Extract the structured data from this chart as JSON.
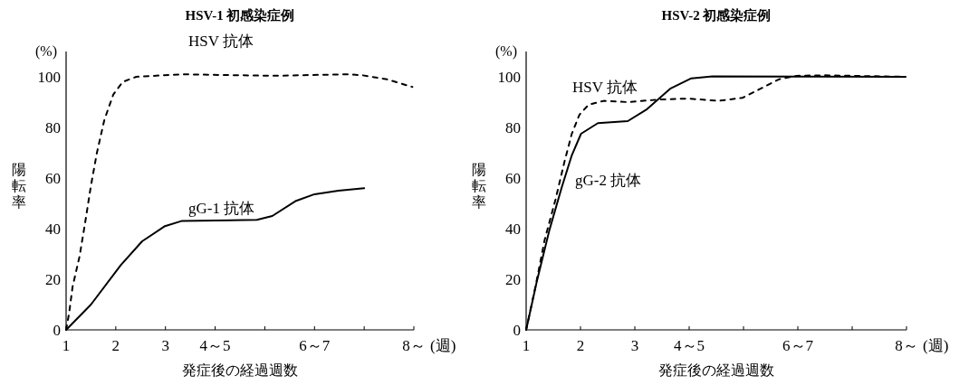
{
  "chart_data": [
    {
      "type": "line",
      "title": "HSV-1 初感染症例",
      "xlabel": "発症後の経過週数",
      "ylabel": "陽転率",
      "annotations": [
        "(%)",
        "(週)"
      ],
      "xlim": [
        1,
        8
      ],
      "xticks": [
        1,
        2,
        3,
        {
          "value": 4,
          "label": "4～5"
        },
        {
          "value": 5,
          "label": null
        },
        {
          "value": 6,
          "label": "6～7"
        },
        {
          "value": 7,
          "label": null
        },
        {
          "value": 8,
          "label": "8～"
        }
      ],
      "ylim": [
        0,
        110
      ],
      "yticks": [
        0,
        20,
        40,
        60,
        80,
        100
      ],
      "grid": false,
      "marker": "none",
      "series": [
        {
          "name": "HSV 抗体",
          "color": "#000000",
          "line_style": "dashed",
          "x": [
            1,
            1.06,
            1.13,
            1.27,
            1.38,
            1.5,
            1.62,
            1.77,
            1.95,
            2.14,
            2.41,
            3.32,
            5.15,
            6.67,
            6.97,
            7.46,
            7.97
          ],
          "values": [
            0,
            6.5,
            17,
            29,
            42,
            57,
            70,
            83,
            93,
            98,
            100,
            101,
            100.4,
            101,
            100.6,
            99,
            96
          ]
        },
        {
          "name": "gG-1 抗体",
          "color": "#000000",
          "line_style": "solid",
          "x": [
            1,
            1.5,
            2.1,
            2.53,
            2.99,
            3.32,
            4.84,
            5.15,
            5.63,
            6,
            6.48,
            7
          ],
          "values": [
            0,
            10,
            25.6,
            35,
            41,
            43,
            43.5,
            45,
            51,
            53.6,
            55,
            56
          ]
        }
      ]
    },
    {
      "type": "line",
      "title": "HSV-2 初感染症例",
      "xlabel": "発症後の経過週数",
      "ylabel": "陽転率",
      "annotations": [
        "(%)",
        "(週)"
      ],
      "xlim": [
        1,
        8
      ],
      "xticks": [
        1,
        2,
        3,
        {
          "value": 4,
          "label": "4～5"
        },
        {
          "value": 5,
          "label": null
        },
        {
          "value": 6,
          "label": "6～7"
        },
        {
          "value": 7,
          "label": null
        },
        {
          "value": 8,
          "label": "8～"
        }
      ],
      "ylim": [
        0,
        110
      ],
      "yticks": [
        0,
        20,
        40,
        60,
        80,
        100
      ],
      "grid": false,
      "marker": "none",
      "series": [
        {
          "name": "HSV 抗体",
          "color": "#000000",
          "line_style": "dashed",
          "x": [
            1,
            1.18,
            1.34,
            1.54,
            1.7,
            1.84,
            1.98,
            2.15,
            2.43,
            2.87,
            3.43,
            3.98,
            4.54,
            4.98,
            5.26,
            5.65,
            5.98,
            6.48,
            7.98
          ],
          "values": [
            0,
            18,
            35.5,
            51.5,
            66,
            77.5,
            85,
            89,
            90.5,
            90,
            91,
            91.4,
            90.5,
            91.7,
            94.7,
            99,
            100.4,
            100.6,
            100
          ]
        },
        {
          "name": "gG-2 抗体",
          "color": "#000000",
          "line_style": "solid",
          "x": [
            1,
            1.2,
            1.43,
            1.65,
            1.84,
            2.01,
            2.32,
            2.87,
            3.21,
            3.65,
            4.04,
            4.43,
            7.98
          ],
          "values": [
            0,
            19.5,
            39.6,
            56,
            69,
            77.5,
            81.7,
            82.5,
            87,
            95.3,
            99.4,
            100.2,
            100
          ]
        }
      ]
    }
  ]
}
